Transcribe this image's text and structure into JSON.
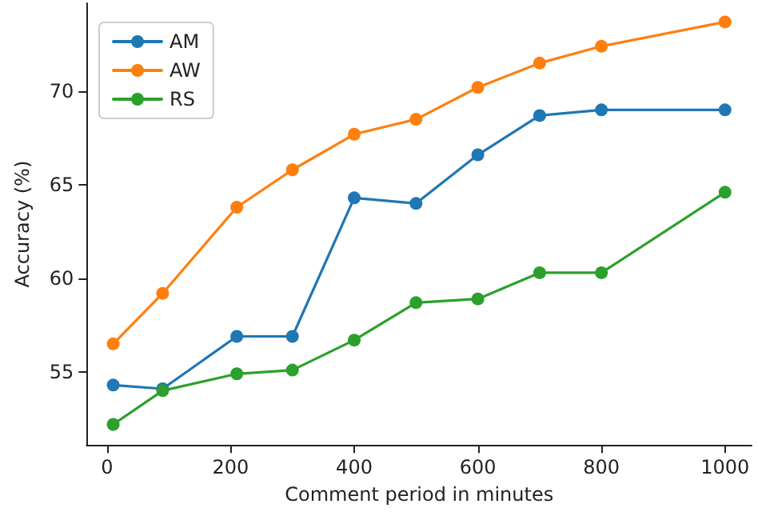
{
  "chart_data": {
    "type": "line",
    "xlabel": "Comment period in minutes",
    "ylabel": "Accuracy (%)",
    "x": [
      10,
      90,
      210,
      300,
      400,
      500,
      600,
      700,
      800,
      1000
    ],
    "series": [
      {
        "name": "AM",
        "color": "#1f77b4",
        "values": [
          54.3,
          54.1,
          56.9,
          56.9,
          64.3,
          64.0,
          66.6,
          68.7,
          69.0,
          69.0
        ]
      },
      {
        "name": "AW",
        "color": "#ff7f0e",
        "values": [
          56.5,
          59.2,
          63.8,
          65.8,
          67.7,
          68.5,
          70.2,
          71.5,
          72.4,
          73.7
        ]
      },
      {
        "name": "RS",
        "color": "#2ca02c",
        "values": [
          52.2,
          54.0,
          54.9,
          55.1,
          56.7,
          58.7,
          58.9,
          60.3,
          60.3,
          64.6
        ]
      }
    ],
    "xlim": [
      -33,
      1043
    ],
    "xticks": [
      0,
      200,
      400,
      600,
      800,
      1000
    ],
    "ylim": [
      51.1,
      74.7
    ],
    "yticks": [
      55,
      60,
      65,
      70
    ],
    "legend": "top left",
    "marker": "circle",
    "line_style": "solid",
    "grid": false
  }
}
